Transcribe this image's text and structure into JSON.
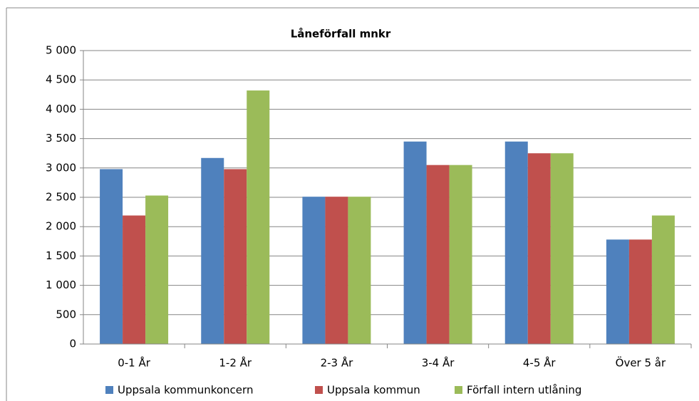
{
  "chart_data": {
    "type": "bar",
    "title": "Låneförfall mnkr",
    "categories": [
      "0-1 År",
      "1-2 År",
      "2-3 År",
      "3-4 År",
      "4-5 År",
      "Över 5 år"
    ],
    "series": [
      {
        "name": "Uppsala kommunkoncern",
        "color": "#4f81bd",
        "values": [
          2980,
          3170,
          2510,
          3450,
          3450,
          1780
        ]
      },
      {
        "name": "Uppsala kommun",
        "color": "#c0504d",
        "values": [
          2190,
          2980,
          2510,
          3050,
          3250,
          1780
        ]
      },
      {
        "name": "Förfall intern utlåning",
        "color": "#9bbb59",
        "values": [
          2530,
          4320,
          2510,
          3050,
          3250,
          2190
        ]
      }
    ],
    "ylim": [
      0,
      5000
    ],
    "yticks": [
      0,
      500,
      {
        "value": 1000,
        "label": "1 000"
      },
      {
        "value": 1500,
        "label": "1 500"
      },
      {
        "value": 2000,
        "label": "2 000"
      },
      {
        "value": 2500,
        "label": "2 500"
      },
      {
        "value": 3000,
        "label": "3 000"
      },
      {
        "value": 3500,
        "label": "3 500"
      },
      {
        "value": 4000,
        "label": "4 000"
      },
      {
        "value": 4500,
        "label": "4 500"
      },
      {
        "value": 5000,
        "label": "5 000"
      }
    ],
    "grid": true,
    "legend": "bottom"
  }
}
